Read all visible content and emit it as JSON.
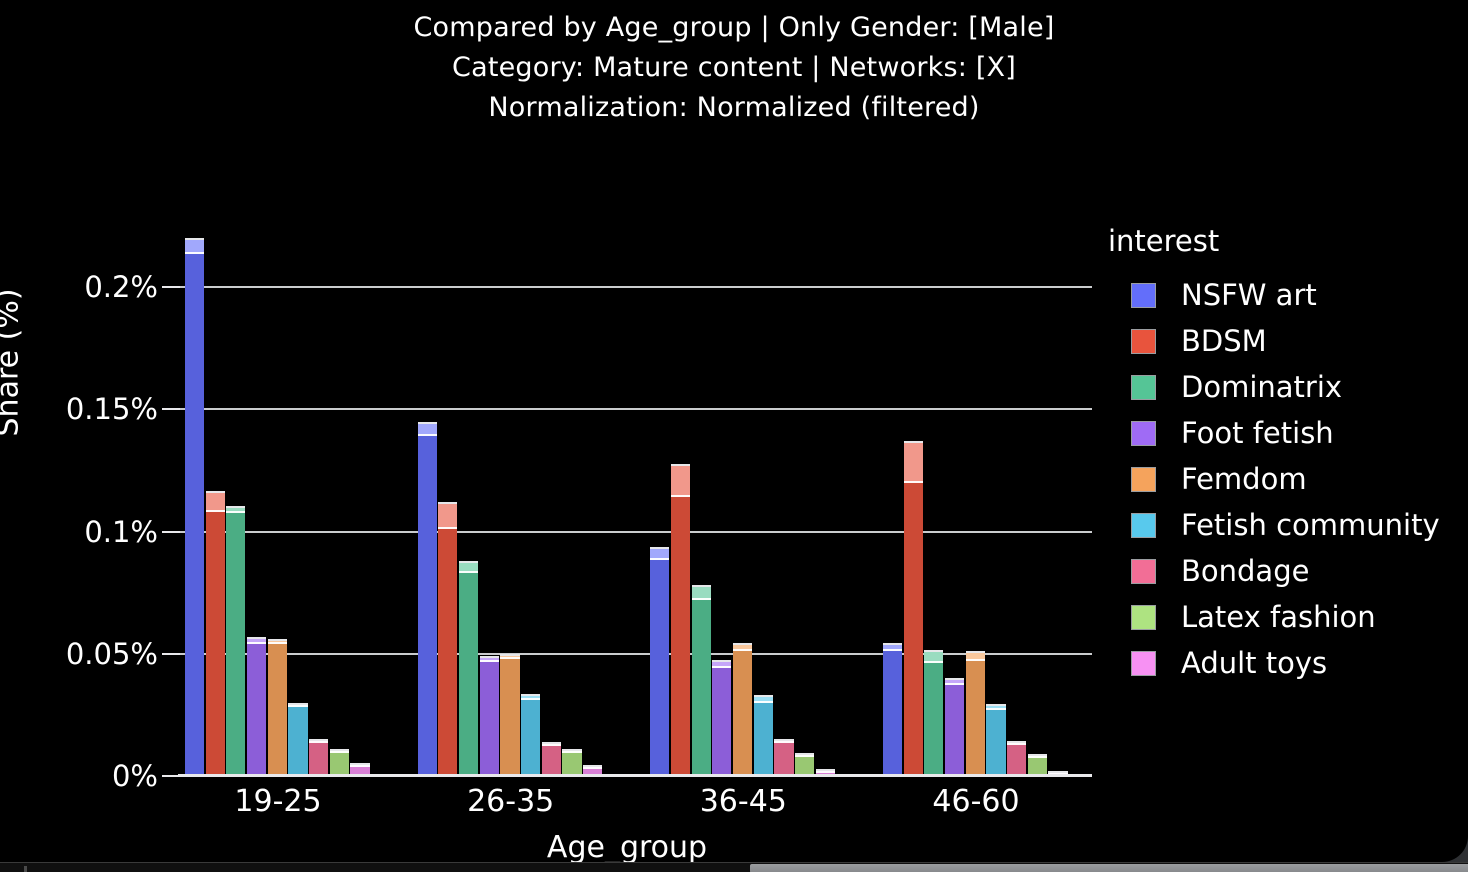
{
  "title": {
    "lines": [
      "Compared by Age_group | Only Gender: [Male]",
      "Category: Mature content | Networks: [X]",
      "Normalization: Normalized (filtered)"
    ]
  },
  "chart_data": {
    "type": "bar",
    "grouped": true,
    "xlabel": "Age_group",
    "ylabel": "Share (%)",
    "legend_title": "interest",
    "categories": [
      "19-25",
      "26-35",
      "36-45",
      "46-60"
    ],
    "yticks": {
      "values": [
        0,
        0.05,
        0.1,
        0.15,
        0.2
      ],
      "labels": [
        "0%",
        "0.05%",
        "0.1%",
        "0.15%",
        "0.2%"
      ]
    },
    "ylim": [
      0,
      0.23
    ],
    "units": "% share",
    "note": "values = solid bar top (point estimate); upper = top of lighter confidence cap",
    "series": [
      {
        "name": "NSFW art",
        "color": "#636EFA",
        "values": [
          0.2135,
          0.139,
          0.0885,
          0.051
        ],
        "upper": [
          0.22,
          0.145,
          0.0935,
          0.0545
        ]
      },
      {
        "name": "BDSM",
        "color": "#E8543D",
        "values": [
          0.108,
          0.101,
          0.114,
          0.12
        ],
        "upper": [
          0.1165,
          0.112,
          0.1275,
          0.137
        ]
      },
      {
        "name": "Dominatrix",
        "color": "#55C596",
        "values": [
          0.1075,
          0.083,
          0.072,
          0.046
        ],
        "upper": [
          0.1105,
          0.088,
          0.078,
          0.0515
        ]
      },
      {
        "name": "Foot fetish",
        "color": "#9F6BF5",
        "values": [
          0.054,
          0.0465,
          0.044,
          0.037
        ],
        "upper": [
          0.057,
          0.049,
          0.0475,
          0.04
        ]
      },
      {
        "name": "Femdom",
        "color": "#F5A35C",
        "values": [
          0.054,
          0.048,
          0.051,
          0.047
        ],
        "upper": [
          0.056,
          0.05,
          0.0545,
          0.051
        ]
      },
      {
        "name": "Fetish community",
        "color": "#58C9ED",
        "values": [
          0.028,
          0.031,
          0.03,
          0.027
        ],
        "upper": [
          0.03,
          0.0335,
          0.033,
          0.0295
        ]
      },
      {
        "name": "Bondage",
        "color": "#F26E96",
        "values": [
          0.0135,
          0.0125,
          0.0135,
          0.0125
        ],
        "upper": [
          0.015,
          0.014,
          0.015,
          0.0145
        ]
      },
      {
        "name": "Latex fashion",
        "color": "#AEE381",
        "values": [
          0.01,
          0.01,
          0.0085,
          0.008
        ],
        "upper": [
          0.011,
          0.011,
          0.0095,
          0.009
        ]
      },
      {
        "name": "Adult toys",
        "color": "#F791F3",
        "values": [
          0.005,
          0.004,
          0.002,
          0.0015
        ],
        "upper": [
          0.0055,
          0.0045,
          0.0028,
          0.002
        ]
      }
    ]
  }
}
